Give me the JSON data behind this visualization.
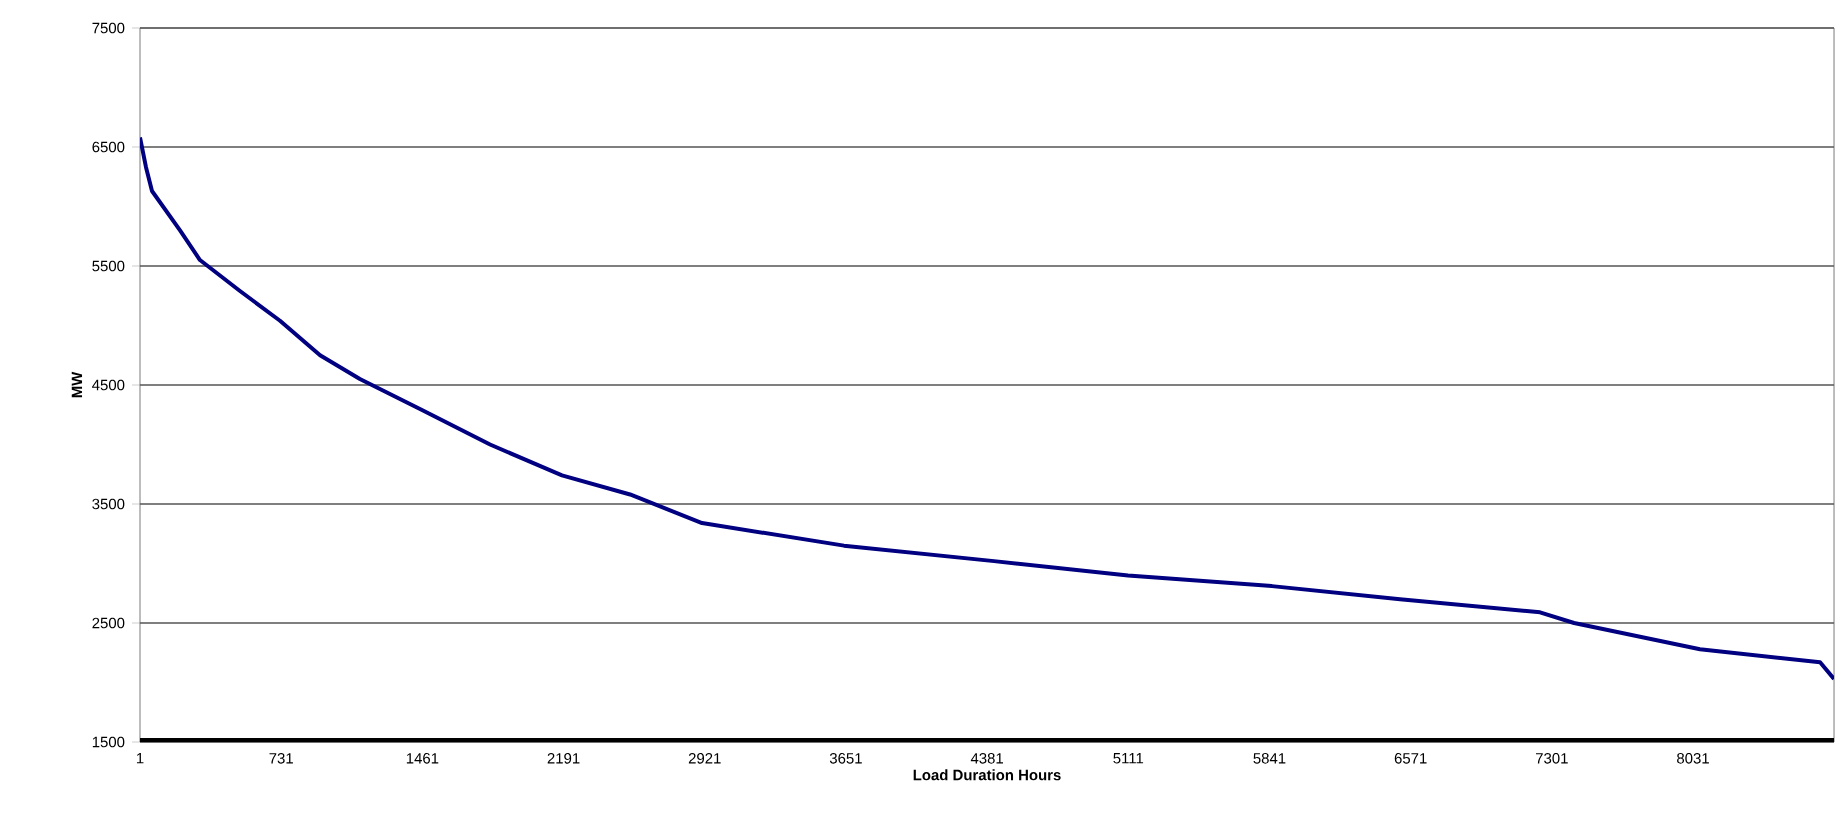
{
  "chart_data": {
    "type": "line",
    "xlabel": "Load Duration Hours",
    "ylabel": "MW",
    "xlim": [
      1,
      8760
    ],
    "xticks": [
      1,
      731,
      1461,
      2191,
      2921,
      3651,
      4381,
      5111,
      5841,
      6571,
      7301,
      8031
    ],
    "ylim": [
      1500,
      7500
    ],
    "yticks": [
      1500,
      2500,
      3500,
      4500,
      5500,
      6500,
      7500
    ],
    "grid": "y",
    "marker": "none",
    "line_style": "solid",
    "series": [
      {
        "color": "#000080",
        "x": [
          1,
          32,
          63,
          208,
          311,
          518,
          725,
          932,
          1138,
          1459,
          1811,
          2183,
          2535,
          2907,
          3641,
          4417,
          5110,
          5854,
          6516,
          7240,
          7416,
          8067,
          8688,
          8760
        ],
        "values": [
          6580,
          6330,
          6130,
          5800,
          5550,
          5290,
          5040,
          4750,
          4550,
          4290,
          4000,
          3740,
          3580,
          3340,
          3150,
          3020,
          2900,
          2810,
          2700,
          2590,
          2500,
          2280,
          2170,
          2030
        ]
      }
    ]
  }
}
